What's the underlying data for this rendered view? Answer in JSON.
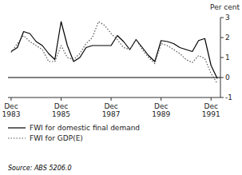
{
  "chart_data": {
    "type": "line",
    "ylabel": "Per cent",
    "source": "Source: ABS 5206.0",
    "categories": [
      "Dec\n1983",
      null,
      null,
      null,
      null,
      null,
      null,
      null,
      "Dec\n1985",
      null,
      null,
      null,
      null,
      null,
      null,
      null,
      "Dec\n1987",
      null,
      null,
      null,
      null,
      null,
      null,
      null,
      "Dec\n1989",
      null,
      null,
      null,
      null,
      null,
      null,
      null,
      "Dec\n1991",
      null
    ],
    "series": [
      {
        "name": "FWI for domestic final demand",
        "color": "#000000",
        "line_style": "solid",
        "values": [
          1.3,
          1.5,
          2.3,
          2.2,
          1.8,
          1.6,
          1.2,
          0.9,
          2.8,
          1.6,
          0.8,
          1.0,
          1.5,
          1.6,
          1.6,
          1.6,
          1.6,
          2.1,
          1.8,
          1.4,
          1.9,
          1.5,
          1.1,
          0.8,
          1.85,
          1.8,
          1.7,
          1.5,
          1.4,
          1.3,
          1.85,
          1.95,
          0.6,
          -0.05
        ]
      },
      {
        "name": "FWI for GDP(E)",
        "color": "#555555",
        "line_style": "dotted",
        "values": [
          1.25,
          1.7,
          2.1,
          1.8,
          1.6,
          1.4,
          0.8,
          0.8,
          1.6,
          1.0,
          0.9,
          1.2,
          1.7,
          2.0,
          2.8,
          2.6,
          2.2,
          1.9,
          1.5,
          1.4,
          1.9,
          1.4,
          1.0,
          0.7,
          1.7,
          1.6,
          1.4,
          1.2,
          0.9,
          0.75,
          1.1,
          0.95,
          0.2,
          -0.3
        ]
      }
    ],
    "ylim": [
      -1,
      3
    ],
    "yticks": [
      -1,
      0,
      1,
      2,
      3
    ],
    "grid": false,
    "legend": "bottom"
  }
}
